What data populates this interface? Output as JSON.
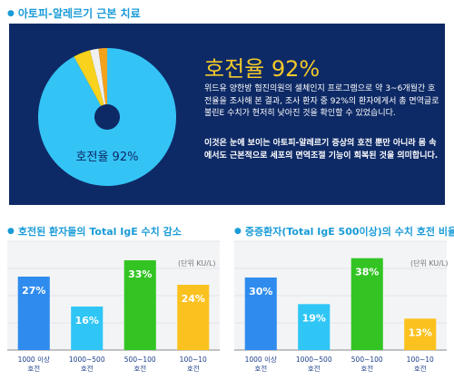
{
  "colors": {
    "accent": "#1a9bd7",
    "panel_bg": "#0e2a66",
    "highlight": "#f3c92a",
    "bar_blue": "#2f8cee",
    "bar_cyan": "#2fc6f5",
    "bar_green": "#33c424",
    "bar_yellow": "#fbc21f"
  },
  "top_section": {
    "title": "아토피-알레르기 근본 치료",
    "heading": "호전율 92%",
    "paragraph1": "위드유 양한방 협진의원의 셀체인지 프로그램으로 약 3~6개월간 호전율을 조사해 본 결과, 조사 환자 중 92%의 환자에게서 총 면역글로불린E 수치가 현저히 낮아진 것을 확인할 수 있었습니다.",
    "paragraph2": "이것은 눈에 보이는 아토피-알레르기 증상의 호전 뿐만 아니라 몸 속에서도 근본적으로 세포의 면역조절 기능이 회복된 것을 의미합니다."
  },
  "chart_data": [
    {
      "type": "pie",
      "title": "",
      "slice_values": [
        92,
        4,
        2,
        2
      ],
      "slice_colors": [
        "#34c3f5",
        "#f8d21c",
        "#f0f0f0",
        "#f4a21c"
      ],
      "center_label": "호전율 92%"
    },
    {
      "type": "bar",
      "title": "호전된 환자들의 Total IgE 수치 감소",
      "unit": "(단위 KU/L)",
      "categories": [
        [
          "1000 이상",
          "호전"
        ],
        [
          "1000~500",
          "호전"
        ],
        [
          "500~100",
          "호전"
        ],
        [
          "100~10",
          "호전"
        ]
      ],
      "values": [
        27,
        16,
        33,
        24
      ],
      "labels": [
        "27%",
        "16%",
        "33%",
        "24%"
      ],
      "colors": [
        "#2f8cee",
        "#2fc6f5",
        "#33c424",
        "#fbc21f"
      ],
      "ylim": [
        0,
        40
      ]
    },
    {
      "type": "bar",
      "title": "중증환자(Total IgE 500이상)의 수치 호전 비율",
      "unit": "(단위 KU/L)",
      "categories": [
        [
          "1000 이상",
          "호전"
        ],
        [
          "1000~500",
          "호전"
        ],
        [
          "500~100",
          "호전"
        ],
        [
          "100~10",
          "호전"
        ]
      ],
      "values": [
        30,
        19,
        38,
        13
      ],
      "labels": [
        "30%",
        "19%",
        "38%",
        "13%"
      ],
      "colors": [
        "#2f8cee",
        "#2fc6f5",
        "#33c424",
        "#fbc21f"
      ],
      "ylim": [
        0,
        45
      ]
    }
  ]
}
